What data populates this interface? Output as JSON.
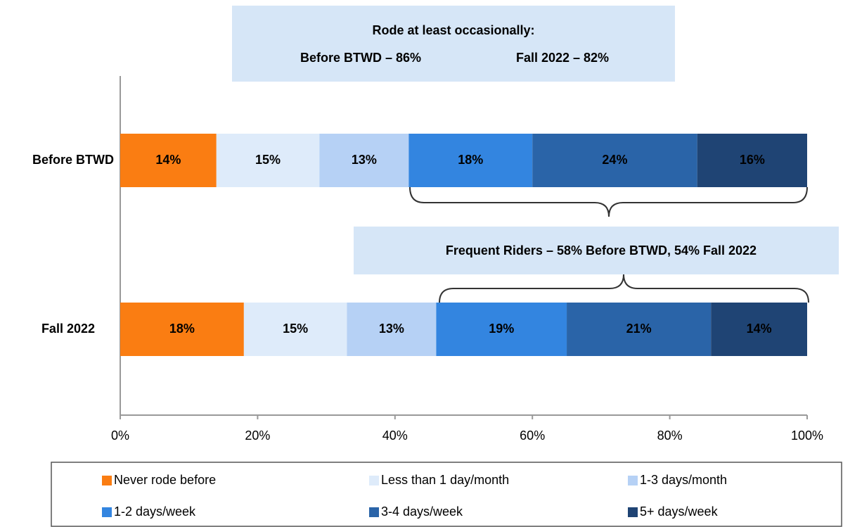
{
  "chart_data": {
    "type": "stacked_bar_horizontal",
    "categories": [
      "Before BTWD",
      "Fall 2022"
    ],
    "series": [
      {
        "name": "Never rode before",
        "color": "#fa7d12",
        "values": [
          14,
          18
        ],
        "value_labels": [
          "14%",
          "18%"
        ]
      },
      {
        "name": "Less than 1 day/month",
        "color": "#deebfa",
        "values": [
          15,
          15
        ],
        "value_labels": [
          "15%",
          "15%"
        ]
      },
      {
        "name": "1-3 days/month",
        "color": "#b6d1f5",
        "values": [
          13,
          13
        ],
        "value_labels": [
          "13%",
          "13%"
        ]
      },
      {
        "name": "1-2 days/week",
        "color": "#3385e0",
        "values": [
          18,
          19
        ],
        "value_labels": [
          "18%",
          "19%"
        ]
      },
      {
        "name": "3-4 days/week",
        "color": "#2a64a8",
        "values": [
          24,
          21
        ],
        "value_labels": [
          "24%",
          "21%"
        ]
      },
      {
        "name": "5+ days/week",
        "color": "#1f4474",
        "values": [
          16,
          14
        ],
        "value_labels": [
          "16%",
          "14%"
        ]
      }
    ],
    "xlim": [
      0,
      100
    ],
    "xticks": [
      {
        "value": 0,
        "label": "0%"
      },
      {
        "value": 20,
        "label": "20%"
      },
      {
        "value": 40,
        "label": "40%"
      },
      {
        "value": 60,
        "label": "60%"
      },
      {
        "value": 80,
        "label": "80%"
      },
      {
        "value": 100,
        "label": "100%"
      }
    ],
    "grid": false,
    "legend": "bottom",
    "annotations": [
      "Rode at least occasionally:",
      "Before BTWD – 86%",
      "Fall 2022 – 82%",
      "Frequent Riders – 58% Before BTWD, 54% Fall 2022"
    ]
  }
}
